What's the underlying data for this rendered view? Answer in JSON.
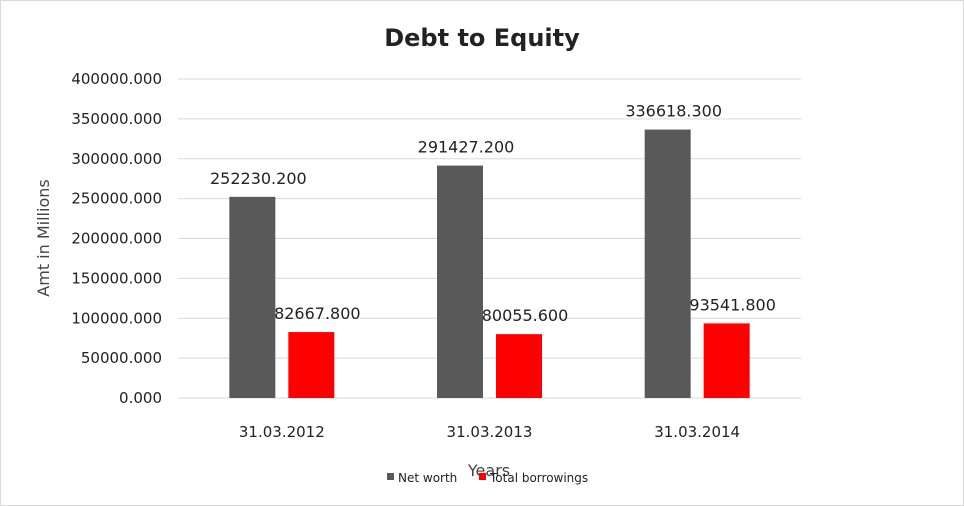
{
  "chart_data": {
    "type": "bar",
    "title": "Debt to Equity",
    "xlabel": "Years",
    "ylabel": "Amt in Millions",
    "categories": [
      "31.03.2012",
      "31.03.2013",
      "31.03.2014"
    ],
    "series": [
      {
        "name": "Net worth",
        "color": "#595959",
        "values": [
          252230.2,
          291427.2,
          336618.3
        ],
        "labels": [
          "252230.200",
          "291427.200",
          "336618.300"
        ]
      },
      {
        "name": "Total borrowings",
        "color": "#ff0000",
        "values": [
          82667.8,
          80055.6,
          93541.8
        ],
        "labels": [
          "82667.800",
          "80055.600",
          "93541.800"
        ]
      }
    ],
    "ylim": [
      0,
      400000
    ],
    "yticks": [
      0,
      50000,
      100000,
      150000,
      200000,
      250000,
      300000,
      350000,
      400000
    ],
    "ytick_labels": [
      "0.000",
      "50000.000",
      "100000.000",
      "150000.000",
      "200000.000",
      "250000.000",
      "300000.000",
      "350000.000",
      "400000.000"
    ],
    "grid": true,
    "legend": "bottom-center"
  }
}
